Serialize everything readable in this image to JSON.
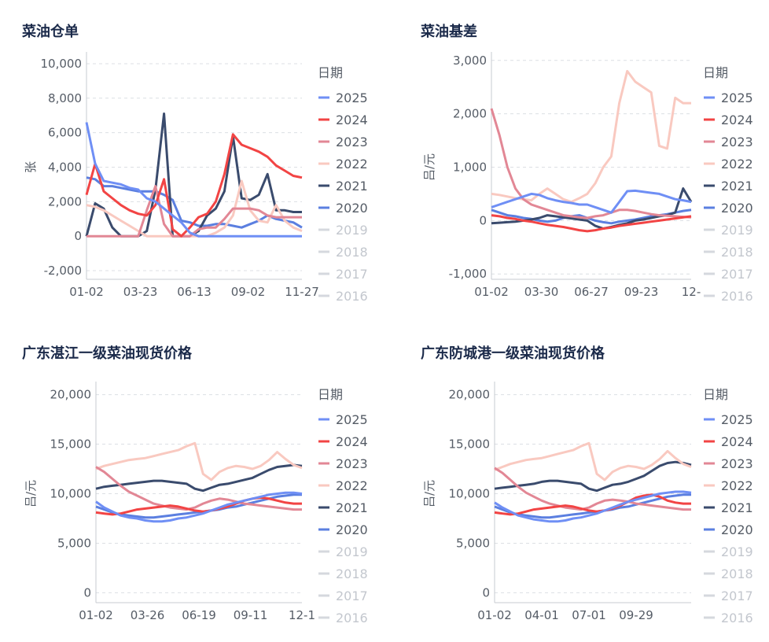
{
  "chart_data": [
    {
      "type": "line",
      "title": "菜油仓单",
      "ylabel": "张",
      "legend_title": "日期",
      "ylim": [
        -2500,
        10500
      ],
      "yticks": [
        -2000,
        0,
        2000,
        4000,
        6000,
        8000,
        10000
      ],
      "xticks": [
        "01-02",
        "03-23",
        "06-13",
        "09-02",
        "11-27"
      ],
      "x": [
        "01-02",
        "01-16",
        "01-30",
        "02-13",
        "02-27",
        "03-13",
        "03-27",
        "04-10",
        "04-24",
        "05-08",
        "05-22",
        "06-05",
        "06-19",
        "07-03",
        "07-17",
        "07-31",
        "08-14",
        "08-28",
        "09-11",
        "09-25",
        "10-09",
        "10-23",
        "11-06",
        "11-20",
        "12-04",
        "12-18"
      ],
      "series": [
        {
          "name": "2025",
          "color": "#6f8ff5",
          "values": [
            6600,
            4200,
            3200,
            3100,
            3000,
            2800,
            2700,
            2200,
            2000,
            1600,
            1200,
            800,
            200,
            0,
            0,
            0,
            0,
            0,
            0,
            0,
            0,
            0,
            0,
            0,
            0,
            0
          ]
        },
        {
          "name": "2024",
          "color": "#f24444",
          "values": [
            2400,
            4200,
            2600,
            2200,
            1800,
            1500,
            1300,
            1200,
            1800,
            3300,
            400,
            0,
            500,
            1100,
            1300,
            2000,
            3600,
            5900,
            5300,
            5100,
            4900,
            4600,
            4100,
            3800,
            3500,
            3400
          ]
        },
        {
          "name": "2023",
          "color": "#e28795",
          "values": [
            0,
            0,
            0,
            0,
            0,
            0,
            0,
            1500,
            2900,
            700,
            0,
            0,
            0,
            400,
            500,
            500,
            1000,
            1600,
            1600,
            1600,
            1500,
            1200,
            1100,
            1100,
            1100,
            1100
          ]
        },
        {
          "name": "2022",
          "color": "#f9c9c0",
          "values": [
            1800,
            1700,
            1500,
            1200,
            900,
            600,
            300,
            0,
            0,
            0,
            0,
            0,
            0,
            0,
            0,
            200,
            500,
            1200,
            3200,
            1500,
            900,
            800,
            1800,
            900,
            500,
            300
          ]
        },
        {
          "name": "2021",
          "color": "#3a4b6d",
          "values": [
            0,
            1900,
            1600,
            500,
            0,
            0,
            0,
            300,
            2700,
            7100,
            0,
            0,
            0,
            300,
            1200,
            1600,
            2600,
            5800,
            2200,
            2100,
            2400,
            3600,
            1500,
            1500,
            1400,
            1400
          ]
        },
        {
          "name": "2020",
          "color": "#5b7fe0",
          "values": [
            3400,
            3300,
            2900,
            2900,
            2800,
            2700,
            2600,
            2600,
            2600,
            2400,
            2100,
            900,
            800,
            600,
            600,
            700,
            700,
            600,
            500,
            700,
            900,
            1200,
            1000,
            900,
            800,
            500
          ]
        }
      ],
      "legend_dim": [
        "2019",
        "2018",
        "2017",
        "2016"
      ]
    },
    {
      "type": "line",
      "title": "菜油基差",
      "ylabel": "吕/元",
      "legend_title": "日期",
      "ylim": [
        -1100,
        3100
      ],
      "yticks": [
        -1000,
        0,
        1000,
        2000,
        3000
      ],
      "xticks": [
        "01-02",
        "03-30",
        "06-27",
        "09-23",
        "12-"
      ],
      "x": [
        "01-02",
        "01-16",
        "01-30",
        "02-13",
        "02-27",
        "03-13",
        "03-27",
        "04-10",
        "04-24",
        "05-08",
        "05-22",
        "06-05",
        "06-19",
        "07-03",
        "07-17",
        "07-31",
        "08-14",
        "08-28",
        "09-11",
        "09-25",
        "10-09",
        "10-23",
        "11-06",
        "11-20",
        "12-04",
        "12-18"
      ],
      "series": [
        {
          "name": "2025",
          "color": "#6f8ff5",
          "values": [
            250,
            300,
            350,
            400,
            450,
            500,
            480,
            420,
            380,
            350,
            330,
            300,
            300,
            250,
            200,
            150,
            350,
            550,
            560,
            540,
            520,
            500,
            450,
            400,
            380,
            350
          ]
        },
        {
          "name": "2024",
          "color": "#f24444",
          "values": [
            100,
            80,
            50,
            30,
            0,
            -20,
            -50,
            -80,
            -100,
            -120,
            -150,
            -180,
            -200,
            -180,
            -150,
            -130,
            -100,
            -80,
            -60,
            -40,
            -20,
            0,
            20,
            40,
            60,
            80
          ]
        },
        {
          "name": "2023",
          "color": "#e28795",
          "values": [
            2100,
            1600,
            1000,
            600,
            400,
            300,
            250,
            200,
            150,
            100,
            80,
            60,
            50,
            80,
            100,
            150,
            200,
            200,
            180,
            150,
            120,
            100,
            90,
            80,
            70,
            60
          ]
        },
        {
          "name": "2022",
          "color": "#f9c9c0",
          "values": [
            500,
            480,
            450,
            420,
            400,
            380,
            500,
            600,
            500,
            400,
            350,
            420,
            500,
            700,
            1000,
            1200,
            2200,
            2800,
            2600,
            2500,
            2400,
            1400,
            1350,
            2300,
            2200,
            2200
          ]
        },
        {
          "name": "2021",
          "color": "#3a4b6d",
          "values": [
            -50,
            -40,
            -30,
            -20,
            0,
            20,
            50,
            100,
            80,
            60,
            40,
            20,
            0,
            -100,
            -150,
            -120,
            -80,
            -50,
            0,
            20,
            50,
            80,
            100,
            150,
            600,
            350
          ]
        },
        {
          "name": "2020",
          "color": "#5b7fe0",
          "values": [
            200,
            150,
            100,
            80,
            50,
            30,
            0,
            -20,
            0,
            50,
            80,
            100,
            50,
            0,
            -30,
            -50,
            -20,
            0,
            20,
            50,
            80,
            100,
            120,
            150,
            180,
            200
          ]
        }
      ],
      "legend_dim": [
        "2019",
        "2018",
        "2017",
        "2016"
      ]
    },
    {
      "type": "line",
      "title": "广东湛江一级菜油现货价格",
      "ylabel": "吕/元",
      "legend_title": "日期",
      "ylim": [
        -1000,
        21000
      ],
      "yticks": [
        0,
        5000,
        10000,
        15000,
        20000
      ],
      "xticks": [
        "01-02",
        "03-26",
        "06-19",
        "09-11",
        "12-1"
      ],
      "x": [
        "01-02",
        "01-16",
        "01-30",
        "02-13",
        "02-27",
        "03-13",
        "03-27",
        "04-10",
        "04-24",
        "05-08",
        "05-22",
        "06-05",
        "06-19",
        "07-03",
        "07-17",
        "07-31",
        "08-14",
        "08-28",
        "09-11",
        "09-25",
        "10-09",
        "10-23",
        "11-06",
        "11-20",
        "12-04",
        "12-18"
      ],
      "series": [
        {
          "name": "2025",
          "color": "#6f8ff5",
          "values": [
            9200,
            8600,
            8200,
            7800,
            7600,
            7500,
            7300,
            7200,
            7200,
            7300,
            7500,
            7600,
            7800,
            8000,
            8300,
            8600,
            8900,
            9100,
            9300,
            9500,
            9700,
            9900,
            10000,
            10100,
            10100,
            10000
          ]
        },
        {
          "name": "2024",
          "color": "#f24444",
          "values": [
            8100,
            8000,
            7900,
            8000,
            8200,
            8400,
            8500,
            8600,
            8700,
            8800,
            8700,
            8500,
            8300,
            8200,
            8300,
            8500,
            8700,
            9000,
            9300,
            9500,
            9600,
            9500,
            9300,
            9100,
            9000,
            9000
          ]
        },
        {
          "name": "2023",
          "color": "#e28795",
          "values": [
            12700,
            12200,
            11500,
            10800,
            10200,
            9800,
            9400,
            9000,
            8800,
            8600,
            8500,
            8400,
            8600,
            9000,
            9300,
            9500,
            9400,
            9200,
            9000,
            8900,
            8800,
            8700,
            8600,
            8500,
            8400,
            8400
          ]
        },
        {
          "name": "2022",
          "color": "#f9c9c0",
          "values": [
            12500,
            12800,
            13000,
            13200,
            13400,
            13500,
            13600,
            13800,
            14000,
            14200,
            14400,
            14800,
            15100,
            12000,
            11400,
            12200,
            12600,
            12800,
            12700,
            12500,
            12800,
            13400,
            14200,
            13500,
            12900,
            12600
          ]
        },
        {
          "name": "2021",
          "color": "#3a4b6d",
          "values": [
            10500,
            10700,
            10800,
            10900,
            11000,
            11100,
            11200,
            11300,
            11300,
            11200,
            11100,
            11000,
            10500,
            10300,
            10600,
            10900,
            11000,
            11200,
            11400,
            11600,
            12000,
            12400,
            12700,
            12800,
            12900,
            12800
          ]
        },
        {
          "name": "2020",
          "color": "#5b7fe0",
          "values": [
            8700,
            8400,
            8100,
            7900,
            7800,
            7700,
            7600,
            7600,
            7700,
            7800,
            7900,
            8000,
            8100,
            8200,
            8300,
            8400,
            8600,
            8700,
            8900,
            9100,
            9300,
            9500,
            9700,
            9800,
            9900,
            9900
          ]
        }
      ],
      "legend_dim": [
        "2019",
        "2018",
        "2017",
        "2016"
      ]
    },
    {
      "type": "line",
      "title": "广东防城港一级菜油现货价格",
      "ylabel": "吕/元",
      "legend_title": "日期",
      "ylim": [
        -1000,
        21000
      ],
      "yticks": [
        0,
        5000,
        10000,
        15000,
        20000
      ],
      "xticks": [
        "01-02",
        "04-01",
        "07-01",
        "09-29"
      ],
      "x": [
        "01-02",
        "01-16",
        "01-30",
        "02-13",
        "02-27",
        "03-13",
        "03-27",
        "04-10",
        "04-24",
        "05-08",
        "05-22",
        "06-05",
        "06-19",
        "07-03",
        "07-17",
        "07-31",
        "08-14",
        "08-28",
        "09-11",
        "09-25",
        "10-09",
        "10-23",
        "11-06",
        "11-20",
        "12-04",
        "12-18"
      ],
      "series": [
        {
          "name": "2025",
          "color": "#6f8ff5",
          "values": [
            9100,
            8600,
            8200,
            7800,
            7600,
            7400,
            7300,
            7200,
            7200,
            7300,
            7500,
            7600,
            7800,
            8000,
            8300,
            8600,
            8900,
            9200,
            9400,
            9600,
            9800,
            10000,
            10100,
            10200,
            10200,
            10100
          ]
        },
        {
          "name": "2024",
          "color": "#f24444",
          "values": [
            8100,
            8000,
            7900,
            8000,
            8200,
            8400,
            8500,
            8600,
            8700,
            8800,
            8700,
            8500,
            8300,
            8200,
            8300,
            8500,
            8800,
            9200,
            9600,
            9800,
            9900,
            9700,
            9300,
            9100,
            9000,
            9000
          ]
        },
        {
          "name": "2023",
          "color": "#e28795",
          "values": [
            12600,
            12100,
            11400,
            10700,
            10100,
            9700,
            9300,
            9000,
            8800,
            8600,
            8500,
            8400,
            8600,
            9000,
            9300,
            9400,
            9300,
            9200,
            9000,
            8900,
            8800,
            8700,
            8600,
            8500,
            8400,
            8400
          ]
        },
        {
          "name": "2022",
          "color": "#f9c9c0",
          "values": [
            12400,
            12700,
            13000,
            13200,
            13400,
            13500,
            13600,
            13800,
            14000,
            14200,
            14400,
            14800,
            15100,
            12000,
            11400,
            12200,
            12600,
            12800,
            12700,
            12500,
            12900,
            13500,
            14300,
            13600,
            13000,
            12700
          ]
        },
        {
          "name": "2021",
          "color": "#3a4b6d",
          "values": [
            10500,
            10600,
            10700,
            10800,
            10900,
            11000,
            11200,
            11300,
            11300,
            11200,
            11100,
            11000,
            10500,
            10300,
            10600,
            10900,
            11000,
            11200,
            11500,
            11800,
            12300,
            12800,
            13100,
            13200,
            13100,
            12900
          ]
        },
        {
          "name": "2020",
          "color": "#5b7fe0",
          "values": [
            8700,
            8400,
            8100,
            7900,
            7800,
            7700,
            7600,
            7600,
            7700,
            7800,
            7900,
            8000,
            8100,
            8200,
            8300,
            8400,
            8600,
            8700,
            8900,
            9100,
            9300,
            9500,
            9700,
            9800,
            9900,
            9900
          ]
        }
      ],
      "legend_dim": [
        "2019",
        "2018",
        "2017",
        "2016"
      ]
    }
  ]
}
